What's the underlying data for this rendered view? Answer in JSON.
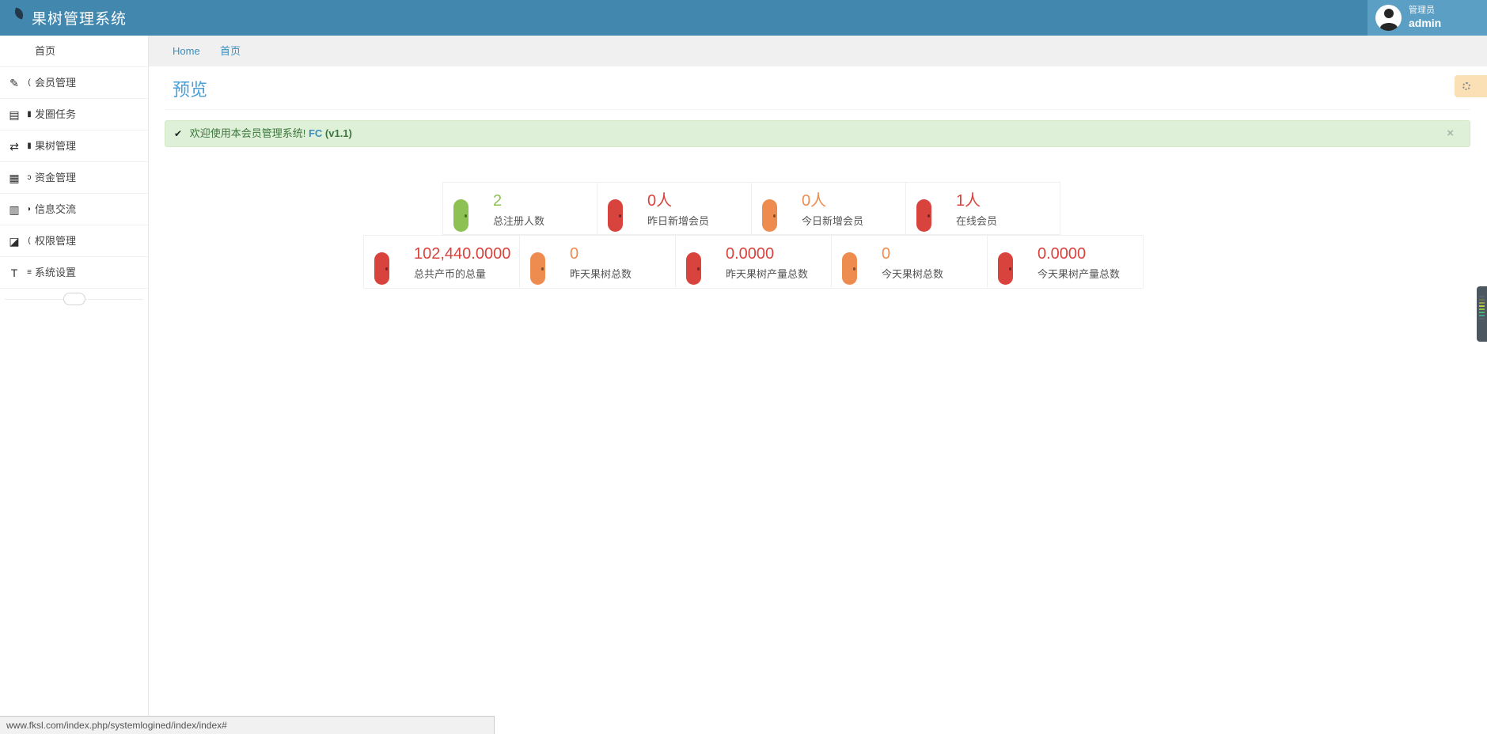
{
  "palette": {
    "header": "#4187ae",
    "headerLight": "#5b9fc4",
    "link": "#3c8dbc",
    "pageTitle": "#4a9fd8",
    "green": "#8dc153",
    "red": "#d8433e",
    "orange": "#ee8c4f",
    "alertBg": "#dff0d8",
    "alertBorder": "#d6e9c6",
    "alertText": "#3c763d",
    "gearTabBg": "#fbdfb5"
  },
  "header": {
    "title": "果树管理系统",
    "user_role": "管理员",
    "user_name": "admin"
  },
  "sidebar": {
    "items": [
      {
        "key": "home",
        "label": "首页",
        "glyph": "",
        "mark": ""
      },
      {
        "key": "members",
        "label": "会员管理",
        "glyph": "✎",
        "mark": "("
      },
      {
        "key": "circle-task",
        "label": "发圈任务",
        "glyph": "▤",
        "mark": "▮"
      },
      {
        "key": "fruit-trees",
        "label": "果树管理",
        "glyph": "⇄",
        "mark": "▮"
      },
      {
        "key": "funds",
        "label": "资金管理",
        "glyph": "▦",
        "mark": "ɔ"
      },
      {
        "key": "messages",
        "label": "信息交流",
        "glyph": "▥",
        "mark": "◗"
      },
      {
        "key": "permissions",
        "label": "权限管理",
        "glyph": "◪",
        "mark": "("
      },
      {
        "key": "settings",
        "label": "系统设置",
        "glyph": "T",
        "mark": "≡"
      }
    ]
  },
  "breadcrumb": {
    "home": "Home",
    "current": "首页"
  },
  "page": {
    "title": "预览"
  },
  "alert": {
    "check_icon": "✔",
    "message": "欢迎使用本会员管理系统!",
    "brand": "FC",
    "version": "(v1.1)",
    "close": "×"
  },
  "stats": {
    "row1": [
      {
        "key": "total-registered",
        "value": "2",
        "label": "总注册人数",
        "color": "green"
      },
      {
        "key": "yesterday-new-members",
        "value": "0人",
        "label": "昨日新增会员",
        "color": "red"
      },
      {
        "key": "today-new-members",
        "value": "0人",
        "label": "今日新增会员",
        "color": "orange"
      },
      {
        "key": "online-members",
        "value": "1人",
        "label": "在线会员",
        "color": "red"
      }
    ],
    "row2": [
      {
        "key": "total-coins",
        "value": "102,440.0000",
        "label": "总共产币的总量",
        "color": "red"
      },
      {
        "key": "yesterday-trees",
        "value": "0",
        "label": "昨天果树总数",
        "color": "orange"
      },
      {
        "key": "yesterday-tree-output",
        "value": "0.0000",
        "label": "昨天果树产量总数",
        "color": "red"
      },
      {
        "key": "today-trees",
        "value": "0",
        "label": "今天果树总数",
        "color": "orange"
      },
      {
        "key": "today-tree-output",
        "value": "0.0000",
        "label": "今天果树产量总数",
        "color": "red"
      }
    ]
  },
  "statusbar": {
    "url": "www.fksl.com/index.php/systemlogined/index/index#"
  }
}
